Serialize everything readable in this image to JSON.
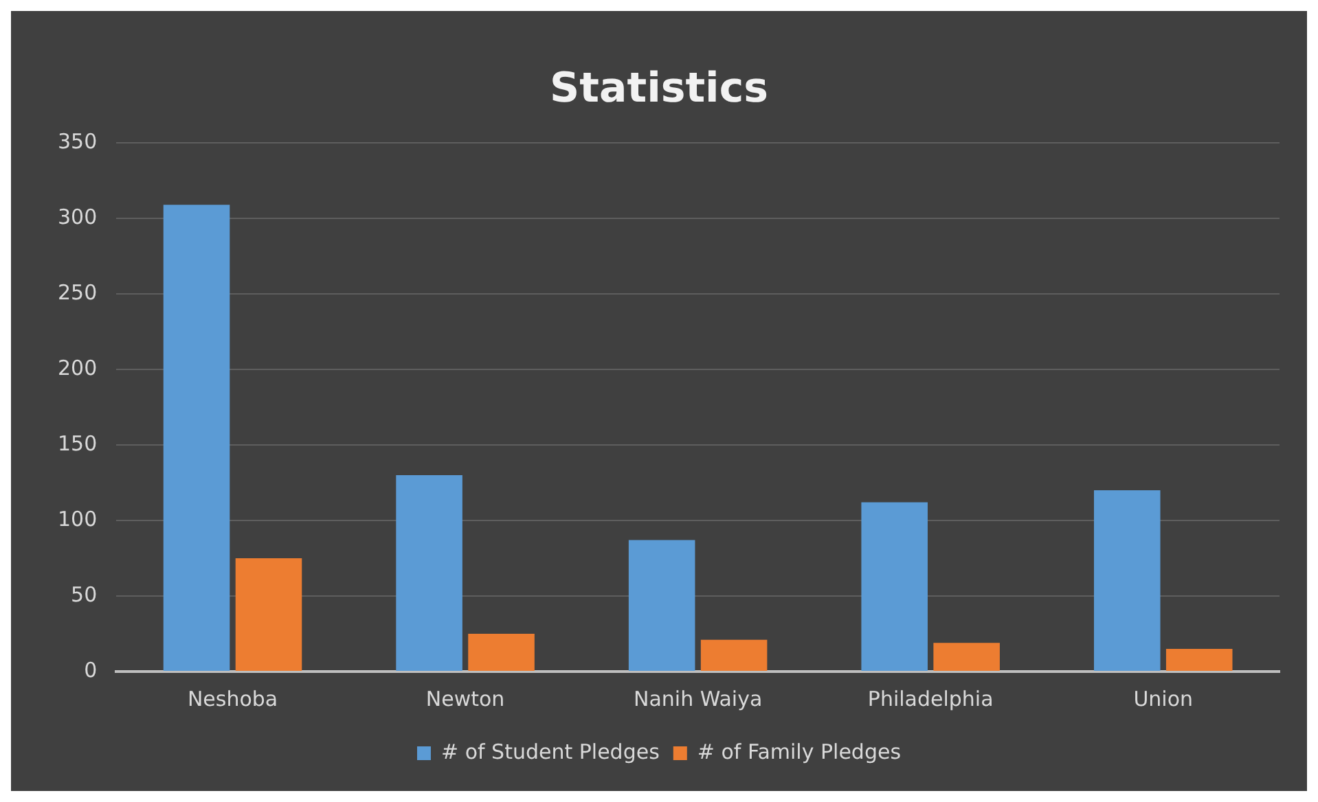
{
  "chart_data": {
    "type": "bar",
    "title": "Statistics",
    "categories": [
      "Neshoba",
      "Newton",
      "Nanih Waiya",
      "Philadelphia",
      "Union"
    ],
    "series": [
      {
        "name": "# of Student Pledges",
        "color": "#5b9bd5",
        "values": [
          309,
          130,
          87,
          112,
          120
        ]
      },
      {
        "name": "# of Family Pledges",
        "color": "#ed7d31",
        "values": [
          75,
          25,
          21,
          19,
          15
        ]
      }
    ],
    "ylim": [
      0,
      350
    ],
    "yticks": [
      0,
      50,
      100,
      150,
      200,
      250,
      300,
      350
    ],
    "grid": "y",
    "legend": "bottom"
  }
}
